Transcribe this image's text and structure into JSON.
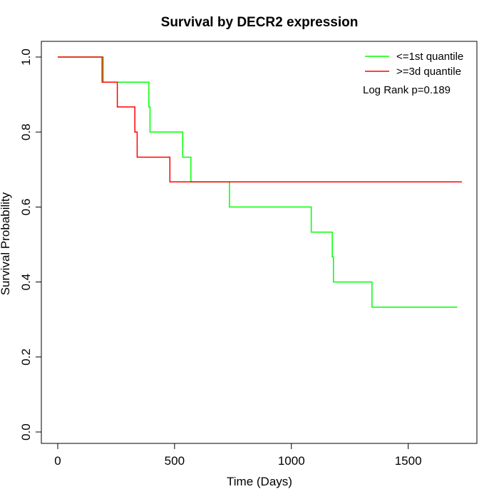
{
  "chart_data": {
    "type": "line",
    "title": "Survival by DECR2 expression",
    "xlabel": "Time (Days)",
    "ylabel": "Survival Probability",
    "xlim": [
      0,
      1730
    ],
    "ylim": [
      0,
      1.0
    ],
    "x_ticks": [
      0,
      500,
      1000,
      1500
    ],
    "y_ticks": [
      0.0,
      0.2,
      0.4,
      0.6,
      0.8,
      1.0
    ],
    "x_tick_labels": [
      "0",
      "500",
      "1000",
      "1500"
    ],
    "y_tick_labels": [
      "0.0",
      "0.2",
      "0.4",
      "0.6",
      "0.8",
      "1.0"
    ],
    "grid": false,
    "legend_position": "top-right",
    "annotation": "Log Rank p=0.189",
    "series": [
      {
        "name": "<=1st quantile",
        "color": "#00ff00",
        "step": true,
        "x": [
          0,
          195,
          390,
          395,
          535,
          570,
          735,
          1085,
          1175,
          1180,
          1345,
          1710
        ],
        "y": [
          1.0,
          0.933,
          0.867,
          0.8,
          0.733,
          0.667,
          0.6,
          0.533,
          0.467,
          0.4,
          0.333,
          0.333
        ]
      },
      {
        "name": ">=3d quantile",
        "color": "#ff0000",
        "step": true,
        "x": [
          0,
          190,
          255,
          330,
          340,
          480,
          1730
        ],
        "y": [
          1.0,
          0.933,
          0.867,
          0.8,
          0.733,
          0.667,
          0.667
        ]
      }
    ]
  }
}
